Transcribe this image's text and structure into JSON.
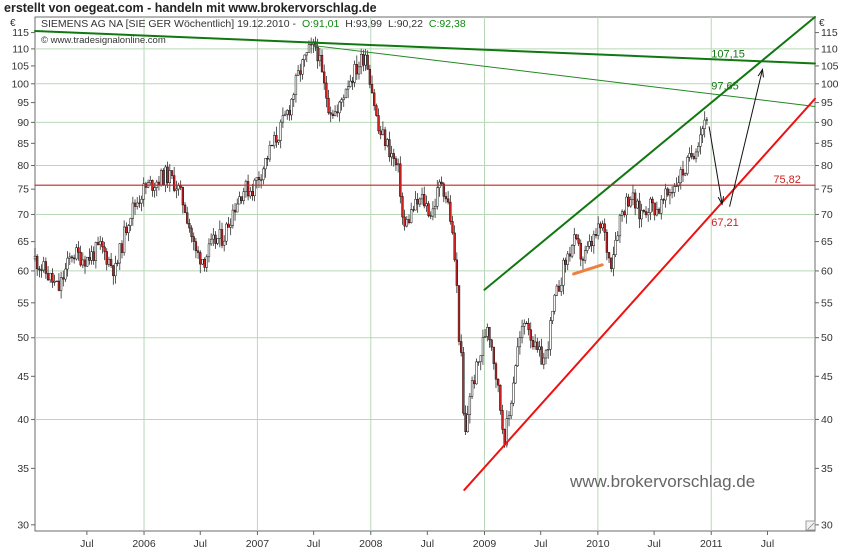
{
  "header": {
    "caption": "erstellt von oegeat.com - handeln mit www.brokervorschlag.de"
  },
  "chart_data": {
    "type": "candlestick",
    "info_line": {
      "instrument": "SIEMENS AG NA [SIE GER  Wöchentlich] 19.12.2010 -",
      "open": "O:91,01",
      "high": "H:93,99",
      "low": "L:90,22",
      "close": "C:92,38"
    },
    "source": "© www.tradesignalonline.com",
    "watermark": "www.brokervorschlag.de",
    "currency_left": "€",
    "currency_right": "€",
    "y_scale": "log",
    "ylim": [
      29.5,
      120
    ],
    "xlim": [
      "2005-01-15",
      "2011-12-01"
    ],
    "y_ticks": [
      {
        "value": 30,
        "label": "30"
      },
      {
        "value": 35,
        "label": "35"
      },
      {
        "value": 40,
        "label": "40"
      },
      {
        "value": 45,
        "label": "45"
      },
      {
        "value": 50,
        "label": "50"
      },
      {
        "value": 55,
        "label": "55"
      },
      {
        "value": 60,
        "label": "60"
      },
      {
        "value": 65,
        "label": "65"
      },
      {
        "value": 70,
        "label": "70"
      },
      {
        "value": 75,
        "label": "75"
      },
      {
        "value": 80,
        "label": "80"
      },
      {
        "value": 85,
        "label": "85"
      },
      {
        "value": 90,
        "label": "90"
      },
      {
        "value": 95,
        "label": "95"
      },
      {
        "value": 100,
        "label": "100"
      },
      {
        "value": 105,
        "label": "105"
      },
      {
        "value": 110,
        "label": "110"
      },
      {
        "value": 115,
        "label": "115"
      }
    ],
    "x_ticks": [
      {
        "date": "2005-07-01",
        "label": "Jul"
      },
      {
        "date": "2006-01-01",
        "label": "2006"
      },
      {
        "date": "2006-07-01",
        "label": "Jul"
      },
      {
        "date": "2007-01-01",
        "label": "2007"
      },
      {
        "date": "2007-07-01",
        "label": "Jul"
      },
      {
        "date": "2008-01-01",
        "label": "2008"
      },
      {
        "date": "2008-07-01",
        "label": "Jul"
      },
      {
        "date": "2009-01-01",
        "label": "2009"
      },
      {
        "date": "2009-07-01",
        "label": "Jul"
      },
      {
        "date": "2010-01-01",
        "label": "2010"
      },
      {
        "date": "2010-07-01",
        "label": "Jul"
      },
      {
        "date": "2011-01-01",
        "label": "2011"
      },
      {
        "date": "2011-07-01",
        "label": "Jul"
      }
    ],
    "grid_lines_years": [
      "2006-01-01",
      "2007-01-01",
      "2008-01-01",
      "2009-01-01",
      "2010-01-01",
      "2011-01-01"
    ],
    "grid_lines_values": [
      40,
      50,
      60,
      70,
      80,
      90,
      100,
      110
    ],
    "grid": true,
    "price_path": [
      [
        "2005-01-15",
        62
      ],
      [
        "2005-02-15",
        60
      ],
      [
        "2005-04-01",
        57
      ],
      [
        "2005-05-15",
        63
      ],
      [
        "2005-07-01",
        62
      ],
      [
        "2005-08-15",
        64
      ],
      [
        "2005-10-01",
        60
      ],
      [
        "2005-11-15",
        70
      ],
      [
        "2006-01-01",
        75
      ],
      [
        "2006-02-15",
        77
      ],
      [
        "2006-03-15",
        78
      ],
      [
        "2006-04-15",
        76
      ],
      [
        "2006-05-15",
        71
      ],
      [
        "2006-06-15",
        63
      ],
      [
        "2006-07-15",
        62
      ],
      [
        "2006-08-15",
        65
      ],
      [
        "2006-09-15",
        66
      ],
      [
        "2006-10-15",
        71
      ],
      [
        "2006-11-15",
        75
      ],
      [
        "2006-12-15",
        75
      ],
      [
        "2007-01-15",
        79
      ],
      [
        "2007-02-15",
        84
      ],
      [
        "2007-03-15",
        88
      ],
      [
        "2007-04-15",
        94
      ],
      [
        "2007-05-15",
        103
      ],
      [
        "2007-06-15",
        109
      ],
      [
        "2007-07-10",
        111
      ],
      [
        "2007-08-01",
        100
      ],
      [
        "2007-08-20",
        94
      ],
      [
        "2007-09-15",
        92
      ],
      [
        "2007-10-15",
        100
      ],
      [
        "2007-11-15",
        104
      ],
      [
        "2007-12-15",
        109
      ],
      [
        "2008-01-10",
        96
      ],
      [
        "2008-01-25",
        88
      ],
      [
        "2008-02-15",
        86
      ],
      [
        "2008-03-10",
        82
      ],
      [
        "2008-04-01",
        78
      ],
      [
        "2008-04-15",
        67
      ],
      [
        "2008-05-15",
        71
      ],
      [
        "2008-06-15",
        73
      ],
      [
        "2008-07-15",
        70
      ],
      [
        "2008-08-15",
        77
      ],
      [
        "2008-09-10",
        71
      ],
      [
        "2008-10-01",
        60
      ],
      [
        "2008-10-10",
        51
      ],
      [
        "2008-10-20",
        46
      ],
      [
        "2008-10-28",
        37
      ],
      [
        "2008-11-15",
        43
      ],
      [
        "2008-12-15",
        47
      ],
      [
        "2009-01-10",
        52
      ],
      [
        "2009-01-25",
        49
      ],
      [
        "2009-02-15",
        43
      ],
      [
        "2009-03-05",
        38
      ],
      [
        "2009-03-20",
        40
      ],
      [
        "2009-04-15",
        48
      ],
      [
        "2009-05-15",
        53
      ],
      [
        "2009-06-15",
        48
      ],
      [
        "2009-07-15",
        47
      ],
      [
        "2009-08-15",
        55
      ],
      [
        "2009-09-15",
        61
      ],
      [
        "2009-10-15",
        65
      ],
      [
        "2009-11-15",
        62
      ],
      [
        "2009-12-15",
        65
      ],
      [
        "2010-01-15",
        68
      ],
      [
        "2010-02-10",
        61
      ],
      [
        "2010-03-15",
        70
      ],
      [
        "2010-04-15",
        74
      ],
      [
        "2010-05-15",
        70
      ],
      [
        "2010-06-15",
        72
      ],
      [
        "2010-07-15",
        71
      ],
      [
        "2010-08-15",
        74
      ],
      [
        "2010-09-15",
        77
      ],
      [
        "2010-10-15",
        80
      ],
      [
        "2010-11-15",
        85
      ],
      [
        "2010-12-19",
        92.38
      ]
    ],
    "lines": [
      {
        "name": "resistance-long",
        "color": "#117711",
        "width": 2,
        "from": [
          "2005-01-15",
          115.5
        ],
        "to": [
          "2011-12-01",
          105.7
        ]
      },
      {
        "name": "resistance-secondary",
        "color": "#228822",
        "width": 1,
        "from": [
          "2007-07-01",
          111
        ],
        "to": [
          "2011-12-01",
          94
        ]
      },
      {
        "name": "upper-channel",
        "color": "#117711",
        "width": 2,
        "from": [
          "2009-01-01",
          57
        ],
        "to": [
          "2011-12-01",
          120
        ]
      },
      {
        "name": "support-level",
        "color": "#cc2222",
        "width": 1.2,
        "from": [
          "2005-01-15",
          75.82
        ],
        "to": [
          "2011-12-01",
          75.82
        ]
      },
      {
        "name": "support-rising",
        "color": "#ee1111",
        "width": 2,
        "from": [
          "2008-10-28",
          33
        ],
        "to": [
          "2011-12-01",
          96
        ]
      },
      {
        "name": "short-support",
        "color": "#f08040",
        "width": 3,
        "from": [
          "2009-10-15",
          59.5
        ],
        "to": [
          "2010-01-15",
          61
        ]
      }
    ],
    "arrows": [
      {
        "name": "arrow-down",
        "from": [
          "2010-12-25",
          89
        ],
        "to": [
          "2011-02-05",
          72
        ]
      },
      {
        "name": "arrow-up",
        "from": [
          "2011-03-01",
          71.5
        ],
        "to": [
          "2011-06-15",
          104
        ]
      }
    ],
    "annotations": [
      {
        "name": "label-107-15",
        "text": "107,15",
        "color": "#117711",
        "at": [
          "2011-01-01",
          107.5
        ]
      },
      {
        "name": "label-97-65",
        "text": "97,65",
        "color": "#117711",
        "at": [
          "2011-01-01",
          98.5
        ]
      },
      {
        "name": "label-75-82",
        "text": "75,82",
        "color": "#cc2222",
        "at": [
          "2011-07-20",
          76.3
        ]
      },
      {
        "name": "label-67-21",
        "text": "67,21",
        "color": "#cc2222",
        "at": [
          "2011-01-01",
          67.8
        ]
      }
    ]
  }
}
